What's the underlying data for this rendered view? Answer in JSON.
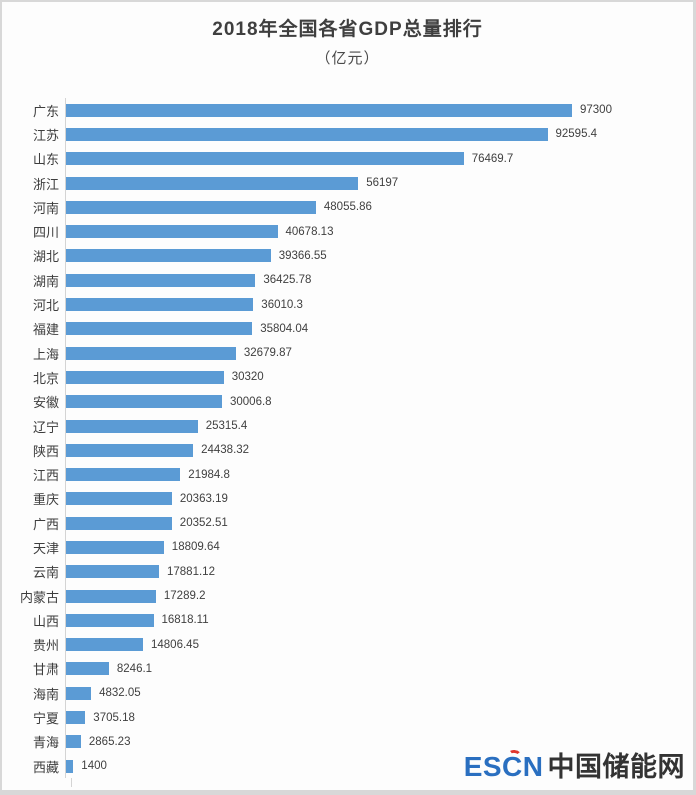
{
  "page": {
    "title": "2018年全国各省GDP总量排行",
    "subtitle": "（亿元）"
  },
  "chart_data": {
    "type": "bar",
    "orientation": "horizontal",
    "title": "2018年全国各省GDP总量排行",
    "subtitle": "（亿元）",
    "unit": "亿元",
    "xlim": [
      0,
      100000
    ],
    "bar_color": "#5B9BD5",
    "axis_color": "#d4d4d4",
    "grid": false,
    "legend": false,
    "categories": [
      "广东",
      "江苏",
      "山东",
      "浙江",
      "河南",
      "四川",
      "湖北",
      "湖南",
      "河北",
      "福建",
      "上海",
      "北京",
      "安徽",
      "辽宁",
      "陕西",
      "江西",
      "重庆",
      "广西",
      "天津",
      "云南",
      "内蒙古",
      "山西",
      "贵州",
      "甘肃",
      "海南",
      "宁夏",
      "青海",
      "西藏"
    ],
    "values": [
      97300,
      92595.4,
      76469.7,
      56197,
      48055.86,
      40678.13,
      39366.55,
      36425.78,
      36010.3,
      35804.04,
      32679.87,
      30320,
      30006.8,
      25315.4,
      24438.32,
      21984.8,
      20363.19,
      20352.51,
      18809.64,
      17881.12,
      17289.2,
      16818.11,
      14806.45,
      8246.1,
      4832.05,
      3705.18,
      2865.23,
      1400
    ],
    "labels": [
      "97300",
      "92595.4",
      "76469.7",
      "56197",
      "48055.86",
      "40678.13",
      "39366.55",
      "36425.78",
      "36010.3",
      "35804.04",
      "32679.87",
      "30320",
      "30006.8",
      "25315.4",
      "24438.32",
      "21984.8",
      "20363.19",
      "20352.51",
      "18809.64",
      "17881.12",
      "17289.2",
      "16818.11",
      "14806.45",
      "8246.1",
      "4832.05",
      "3705.18",
      "2865.23",
      "1400"
    ]
  },
  "logo": {
    "escn": "ESCN",
    "site_name": "中国储能网",
    "escn_color": "#2A6FC0",
    "accent_color": "#E0372E",
    "site_color": "#333333"
  }
}
